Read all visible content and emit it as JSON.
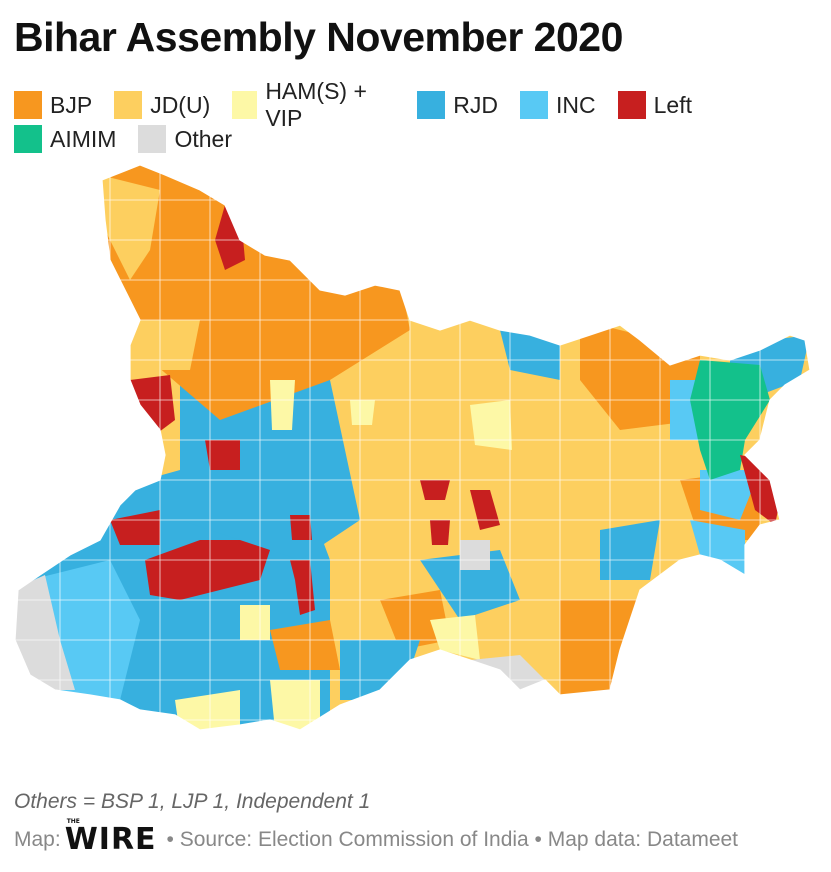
{
  "title": "Bihar Assembly November 2020",
  "legend": [
    {
      "label": "BJP",
      "color": "#f7971f"
    },
    {
      "label": "JD(U)",
      "color": "#fdcf5f"
    },
    {
      "label": "HAM(S) + VIP",
      "color": "#fdf8a6"
    },
    {
      "label": "RJD",
      "color": "#37b0df"
    },
    {
      "label": "INC",
      "color": "#58c9f4"
    },
    {
      "label": "Left",
      "color": "#c71f1f"
    },
    {
      "label": "AIMIM",
      "color": "#13c18b"
    },
    {
      "label": "Other",
      "color": "#dcdcdc"
    }
  ],
  "footnote": "Others = BSP 1, LJP 1, Independent 1",
  "credit": {
    "prefix": "Map:",
    "logo": "WIRE",
    "logo_small": "THE",
    "source": "• Source: Election Commission of India • Map data: Datameet"
  }
}
